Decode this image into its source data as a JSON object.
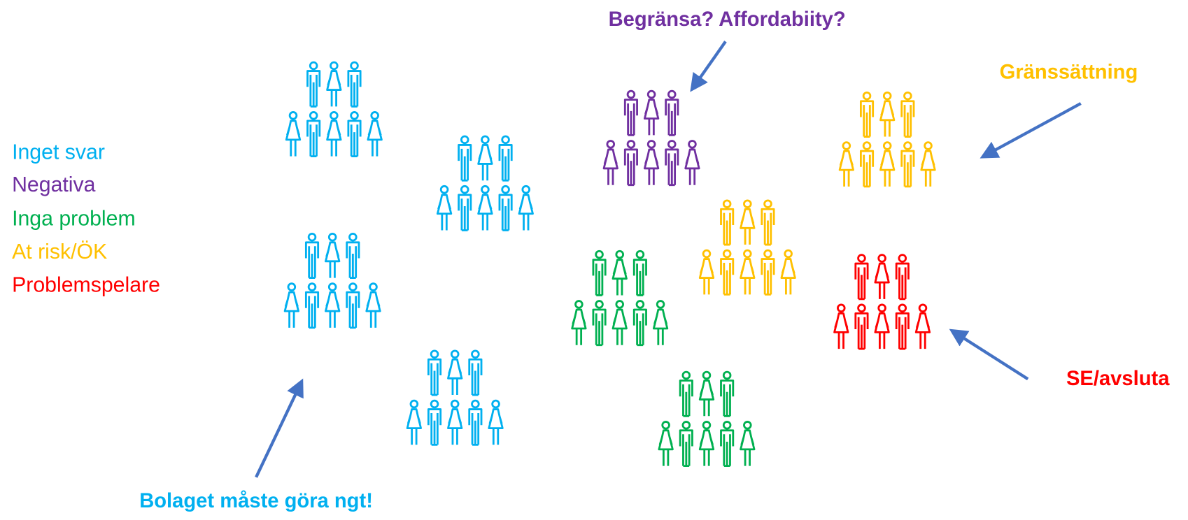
{
  "legend": [
    {
      "label": "Inget svar",
      "color": "#00b0f0"
    },
    {
      "label": "Negativa",
      "color": "#7030a0"
    },
    {
      "label": "Inga problem",
      "color": "#00b050"
    },
    {
      "label": "At risk/ÖK",
      "color": "#ffc000"
    },
    {
      "label": "Problemspelare",
      "color": "#ff0000"
    }
  ],
  "annotations": [
    {
      "text": "Begränsa? Affordabiity?",
      "color": "#7030a0"
    },
    {
      "text": "Gränssättning",
      "color": "#ffc000"
    },
    {
      "text": "SE/avsluta",
      "color": "#ff0000"
    },
    {
      "text": "Bolaget måste göra ngt!",
      "color": "#00b0f0"
    }
  ]
}
